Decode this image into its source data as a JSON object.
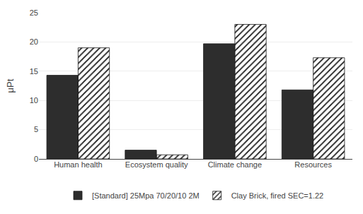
{
  "chart_data": {
    "type": "bar",
    "ylabel": "μPt",
    "categories": [
      "Human health",
      "Ecosystem quality",
      "Climate change",
      "Resources"
    ],
    "series": [
      {
        "name": "[Standard] 25Mpa 70/20/10 2M",
        "color": "#2d2d2d",
        "values": [
          14.3,
          1.5,
          19.7,
          11.8
        ]
      },
      {
        "name": "Clay Brick, fired SEC=1.22",
        "color": "#ffffff",
        "values": [
          19.0,
          0.7,
          23.0,
          17.3
        ]
      }
    ],
    "ylim": [
      0,
      25
    ],
    "yticks": [
      0,
      5,
      10,
      15,
      20,
      25
    ],
    "grid": true,
    "legend": "bottom"
  }
}
